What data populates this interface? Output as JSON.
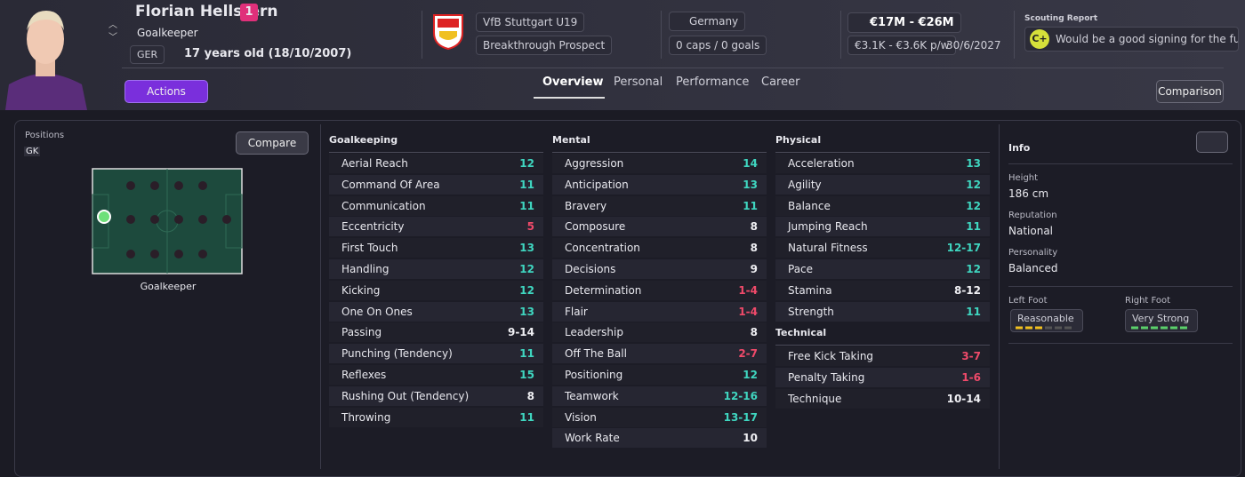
{
  "header": {
    "name": "Florian Hellstern",
    "squad_number": "1",
    "position": "Goalkeeper",
    "nationality_code": "GER",
    "age": "17 years old (18/10/2007)",
    "club": "VfB Stuttgart U19",
    "status": "Breakthrough Prospect",
    "nation": "Germany",
    "caps": "0 caps / 0 goals",
    "value": "€17M - €26M",
    "wage": "€3.1K - €3.6K p/w",
    "contract": "30/6/2027",
    "scouting_title": "Scouting Report",
    "scouting_grade": "C+",
    "scouting_text": "Would be a good signing for the fu...",
    "actions": "Actions",
    "comparison": "Comparison"
  },
  "tabs": [
    "Overview",
    "Personal",
    "Performance",
    "Career"
  ],
  "positions": {
    "title": "Positions",
    "code": "GK",
    "compare": "Compare",
    "label": "Goalkeeper"
  },
  "attributes": {
    "goalkeeping": {
      "title": "Goalkeeping",
      "items": [
        {
          "name": "Aerial Reach",
          "value": 12
        },
        {
          "name": "Command Of Area",
          "value": 11
        },
        {
          "name": "Communication",
          "value": 11
        },
        {
          "name": "Eccentricity",
          "value": 5
        },
        {
          "name": "First Touch",
          "value": 13
        },
        {
          "name": "Handling",
          "value": 12
        },
        {
          "name": "Kicking",
          "value": 12
        },
        {
          "name": "One On Ones",
          "value": 13
        },
        {
          "name": "Passing",
          "value": "9-14"
        },
        {
          "name": "Punching (Tendency)",
          "value": 11
        },
        {
          "name": "Reflexes",
          "value": 15
        },
        {
          "name": "Rushing Out (Tendency)",
          "value": 8
        },
        {
          "name": "Throwing",
          "value": 11
        }
      ]
    },
    "mental": {
      "title": "Mental",
      "items": [
        {
          "name": "Aggression",
          "value": 14
        },
        {
          "name": "Anticipation",
          "value": 13
        },
        {
          "name": "Bravery",
          "value": 11
        },
        {
          "name": "Composure",
          "value": 8
        },
        {
          "name": "Concentration",
          "value": 8
        },
        {
          "name": "Decisions",
          "value": 9
        },
        {
          "name": "Determination",
          "value": "1-4"
        },
        {
          "name": "Flair",
          "value": "1-4"
        },
        {
          "name": "Leadership",
          "value": 8
        },
        {
          "name": "Off The Ball",
          "value": "2-7"
        },
        {
          "name": "Positioning",
          "value": 12
        },
        {
          "name": "Teamwork",
          "value": "12-16"
        },
        {
          "name": "Vision",
          "value": "13-17"
        },
        {
          "name": "Work Rate",
          "value": 10
        }
      ]
    },
    "physical": {
      "title": "Physical",
      "items": [
        {
          "name": "Acceleration",
          "value": 13
        },
        {
          "name": "Agility",
          "value": 12
        },
        {
          "name": "Balance",
          "value": 12
        },
        {
          "name": "Jumping Reach",
          "value": 11
        },
        {
          "name": "Natural Fitness",
          "value": "12-17"
        },
        {
          "name": "Pace",
          "value": 12
        },
        {
          "name": "Stamina",
          "value": "8-12"
        },
        {
          "name": "Strength",
          "value": 11
        }
      ]
    },
    "technical": {
      "title": "Technical",
      "items": [
        {
          "name": "Free Kick Taking",
          "value": "3-7"
        },
        {
          "name": "Penalty Taking",
          "value": "1-6"
        },
        {
          "name": "Technique",
          "value": "10-14"
        }
      ]
    }
  },
  "info": {
    "title": "Info",
    "height_label": "Height",
    "height": "186 cm",
    "reputation_label": "Reputation",
    "reputation": "National",
    "personality_label": "Personality",
    "personality": "Balanced",
    "left_foot_label": "Left Foot",
    "left_foot": "Reasonable",
    "right_foot_label": "Right Foot",
    "right_foot": "Very Strong"
  }
}
